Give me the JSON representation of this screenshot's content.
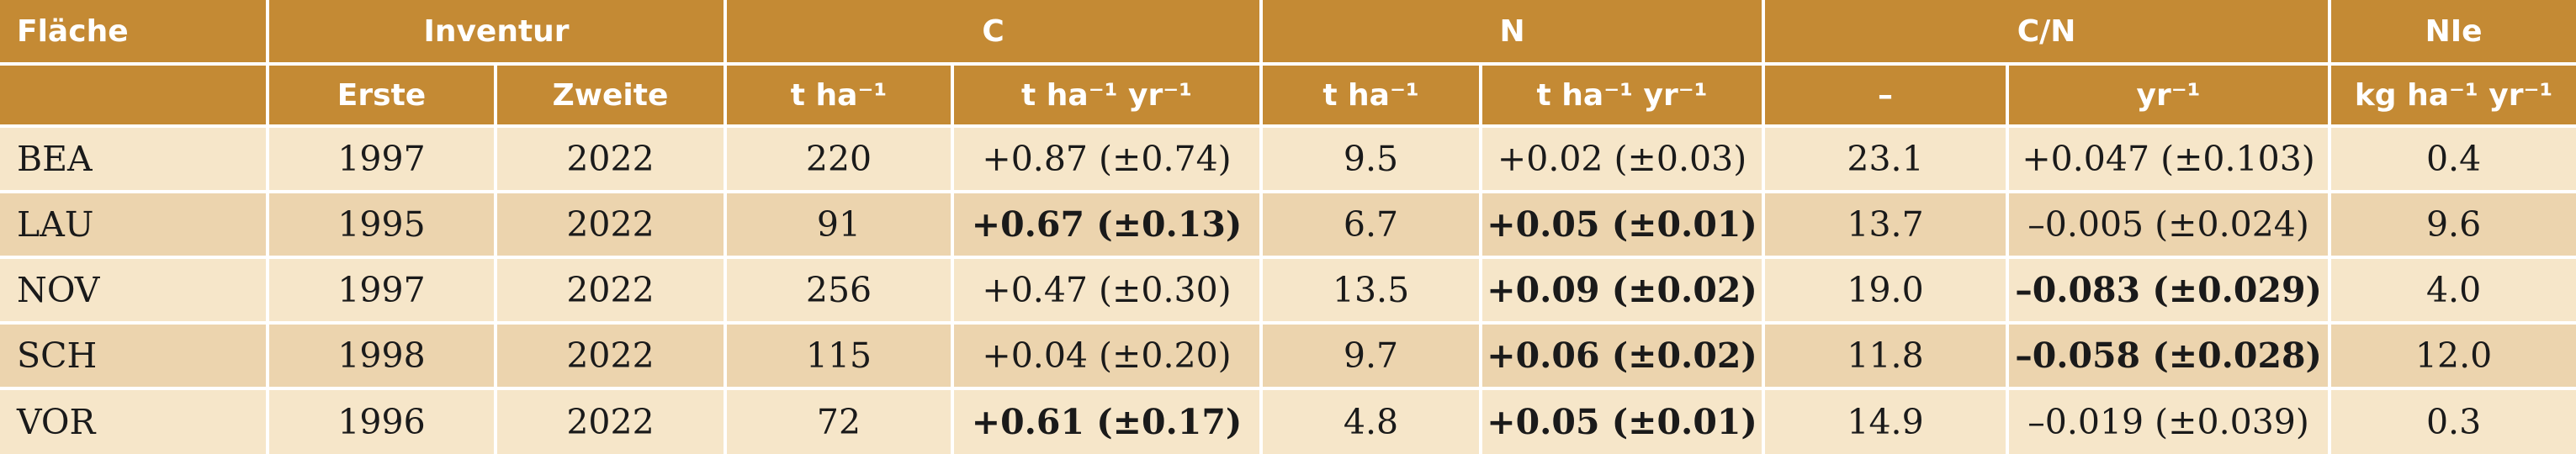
{
  "header": {
    "groups": [
      "Fläche",
      "Inventur",
      "C",
      "N",
      "C/N",
      "NIe"
    ],
    "units": [
      "Erste",
      "Zweite",
      "t ha⁻¹",
      "t ha⁻¹ yr⁻¹",
      "t ha⁻¹",
      "t ha⁻¹ yr⁻¹",
      "–",
      "yr⁻¹",
      "kg ha⁻¹ yr⁻¹"
    ]
  },
  "rows": [
    {
      "site": "BEA",
      "first": "1997",
      "second": "2022",
      "c_stock": "220",
      "c_rate": "+0.87 (±0.74)",
      "n_stock": "9.5",
      "n_rate": "+0.02 (±0.03)",
      "cn": "23.1",
      "cn_rate": "+0.047 (±0.103)",
      "nie": "0.4"
    },
    {
      "site": "LAU",
      "first": "1995",
      "second": "2022",
      "c_stock": "91",
      "c_rate": "+0.67 (±0.13)",
      "n_stock": "6.7",
      "n_rate": "+0.05 (±0.01)",
      "cn": "13.7",
      "cn_rate": "–0.005 (±0.024)",
      "nie": "9.6"
    },
    {
      "site": "NOV",
      "first": "1997",
      "second": "2022",
      "c_stock": "256",
      "c_rate": "+0.47 (±0.30)",
      "n_stock": "13.5",
      "n_rate": "+0.09 (±0.02)",
      "cn": "19.0",
      "cn_rate": "–0.083 (±0.029)",
      "nie": "4.0"
    },
    {
      "site": "SCH",
      "first": "1998",
      "second": "2022",
      "c_stock": "115",
      "c_rate": "+0.04 (±0.20)",
      "n_stock": "9.7",
      "n_rate": "+0.06 (±0.02)",
      "cn": "11.8",
      "cn_rate": "–0.058 (±0.028)",
      "nie": "12.0"
    },
    {
      "site": "VOR",
      "first": "1996",
      "second": "2022",
      "c_stock": "72",
      "c_rate": "+0.61 (±0.17)",
      "n_stock": "4.8",
      "n_rate": "+0.05 (±0.01)",
      "cn": "14.9",
      "cn_rate": "–0.019 (±0.039)",
      "nie": "0.3"
    }
  ],
  "colors": {
    "header_bg": "#c48a34",
    "row_light": "#f6e6c9",
    "row_dark": "#ecd4ae"
  }
}
